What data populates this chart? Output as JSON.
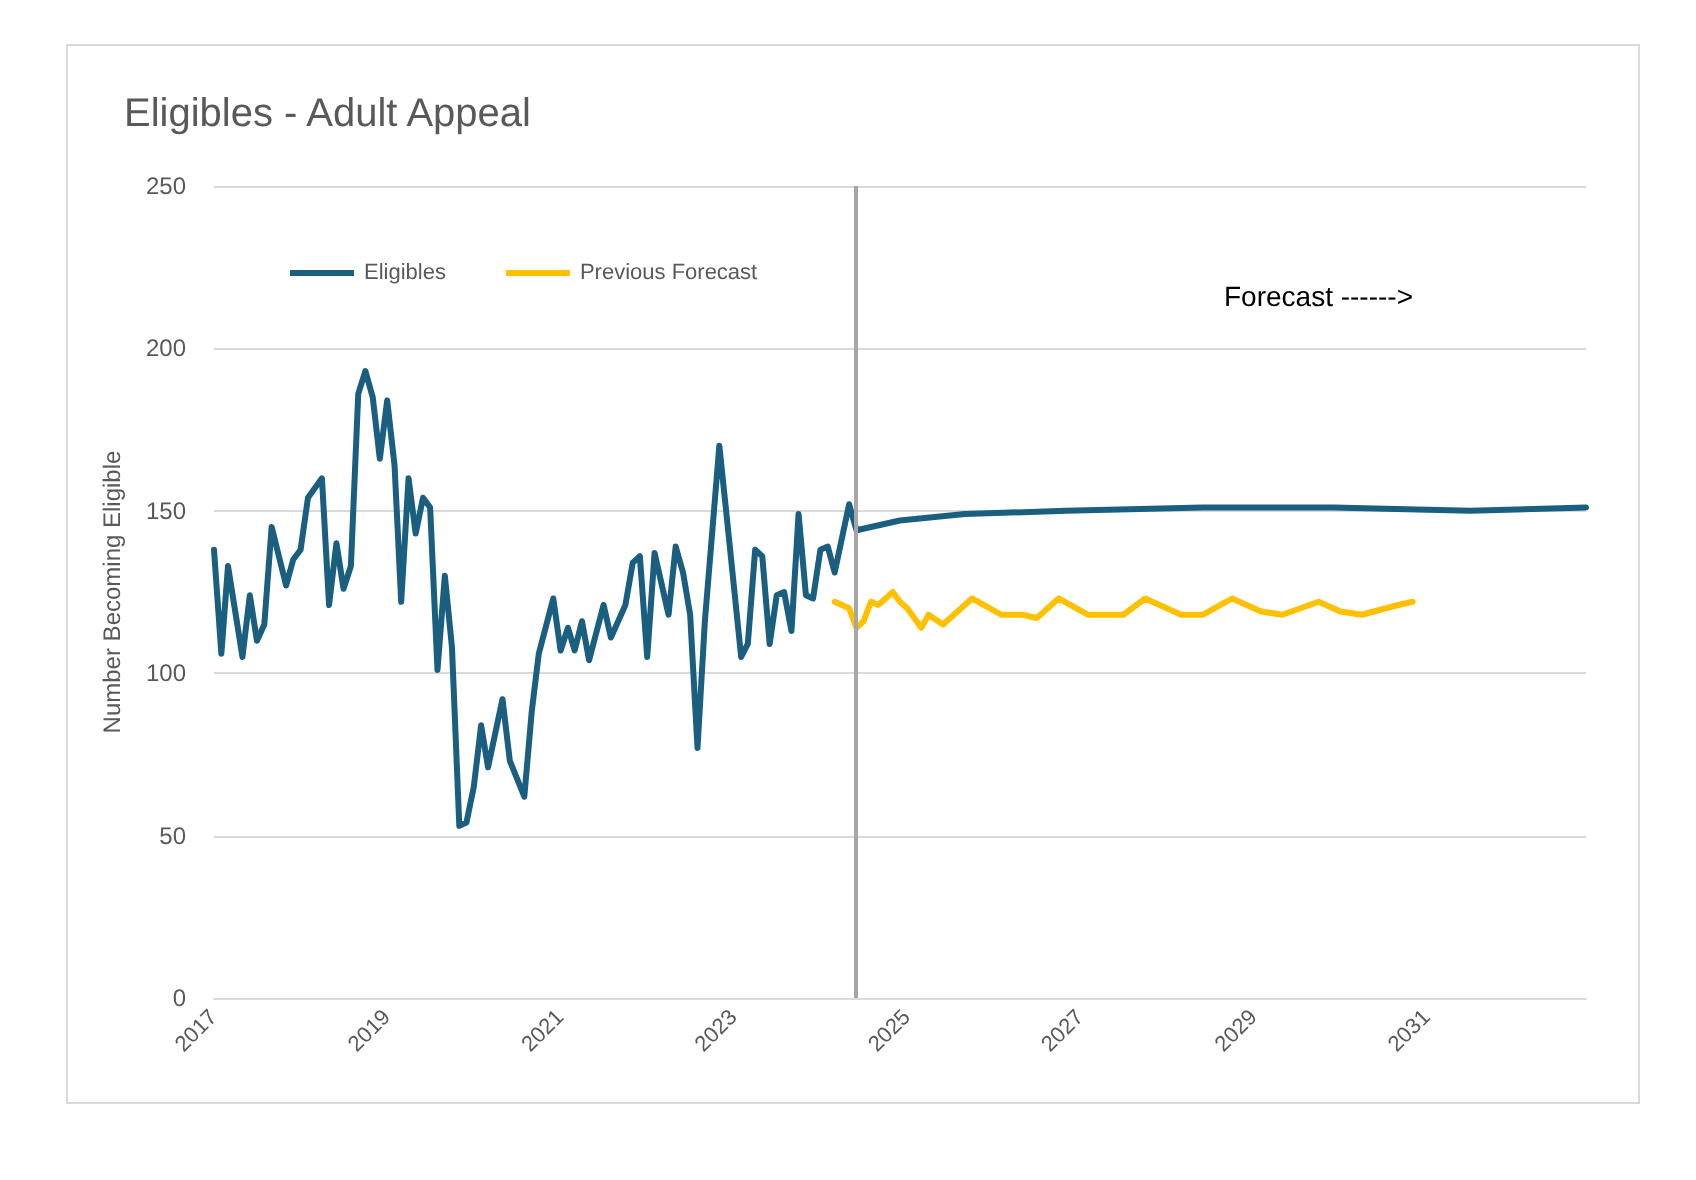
{
  "chart_data": {
    "type": "line",
    "title": "Eligibles - Adult Appeal",
    "ylabel": "Number Becoming Eligible",
    "annotations": [
      "Forecast ------>"
    ],
    "xlim": [
      "2017-01",
      "2032-11"
    ],
    "xticks": [
      "2017",
      "2019",
      "2021",
      "2023",
      "2025",
      "2027",
      "2029",
      "2031"
    ],
    "ylim": [
      0,
      250
    ],
    "yticks": [
      0,
      50,
      100,
      150,
      200,
      250
    ],
    "grid": "y",
    "legend": "top left",
    "marker": "none",
    "line_style": "solid",
    "ref_lines": [
      {
        "axis": "x",
        "value": "2024-06",
        "color": "#a6a6a6",
        "line_style": "solid"
      }
    ],
    "series": [
      {
        "name": "Eligibles",
        "color": "#1a5e80",
        "x": [
          "2017-01",
          "2017-02",
          "2017-03",
          "2017-05",
          "2017-06",
          "2017-07",
          "2017-08",
          "2017-09",
          "2017-11",
          "2017-12",
          "2018-01",
          "2018-02",
          "2018-04",
          "2018-05",
          "2018-06",
          "2018-07",
          "2018-08",
          "2018-09",
          "2018-10",
          "2018-11",
          "2018-12",
          "2019-01",
          "2019-02",
          "2019-03",
          "2019-04",
          "2019-05",
          "2019-06",
          "2019-07",
          "2019-08",
          "2019-09",
          "2019-10",
          "2019-11",
          "2019-12",
          "2020-01",
          "2020-02",
          "2020-03",
          "2020-05",
          "2020-06",
          "2020-08",
          "2020-09",
          "2020-10",
          "2020-12",
          "2021-01",
          "2021-02",
          "2021-03",
          "2021-04",
          "2021-05",
          "2021-07",
          "2021-08",
          "2021-10",
          "2021-11",
          "2021-12",
          "2022-01",
          "2022-02",
          "2022-04",
          "2022-05",
          "2022-06",
          "2022-07",
          "2022-08",
          "2022-09",
          "2022-11",
          "2022-12",
          "2023-02",
          "2023-03",
          "2023-04",
          "2023-05",
          "2023-06",
          "2023-07",
          "2023-08",
          "2023-09",
          "2023-10",
          "2023-11",
          "2023-12",
          "2024-01",
          "2024-02",
          "2024-03",
          "2024-05",
          "2024-06",
          "2024-12",
          "2025-09",
          "2026-11",
          "2028-06",
          "2029-12",
          "2031-07",
          "2032-11"
        ],
        "values": [
          138,
          106,
          133,
          105,
          124,
          110,
          115,
          145,
          127,
          135,
          138,
          154,
          160,
          121,
          140,
          126,
          133,
          186,
          193,
          185,
          166,
          184,
          164,
          122,
          160,
          143,
          154,
          151,
          101,
          130,
          108,
          53,
          54,
          65,
          84,
          71,
          92,
          73,
          62,
          88,
          106,
          123,
          107,
          114,
          107,
          116,
          104,
          121,
          111,
          121,
          134,
          136,
          105,
          137,
          118,
          139,
          131,
          118,
          77,
          116,
          170,
          149,
          105,
          109,
          138,
          136,
          109,
          124,
          125,
          113,
          149,
          124,
          123,
          138,
          139,
          131,
          152,
          144,
          147,
          149,
          150,
          151,
          151,
          150,
          151
        ]
      },
      {
        "name": "Previous Forecast",
        "color": "#ffc000",
        "x": [
          "2024-03",
          "2024-05",
          "2024-06",
          "2024-07",
          "2024-08",
          "2024-09",
          "2024-11",
          "2024-12",
          "2025-01",
          "2025-03",
          "2025-04",
          "2025-06",
          "2025-10",
          "2026-02",
          "2026-05",
          "2026-07",
          "2026-10",
          "2027-02",
          "2027-07",
          "2027-10",
          "2028-03",
          "2028-06",
          "2028-10",
          "2029-02",
          "2029-05",
          "2029-10",
          "2030-01",
          "2030-04",
          "2030-09",
          "2030-11"
        ],
        "values": [
          122,
          120,
          114,
          116,
          122,
          121,
          125,
          122,
          120,
          114,
          118,
          115,
          123,
          118,
          118,
          117,
          123,
          118,
          118,
          123,
          118,
          118,
          123,
          119,
          118,
          122,
          119,
          118,
          121,
          122
        ]
      }
    ]
  }
}
